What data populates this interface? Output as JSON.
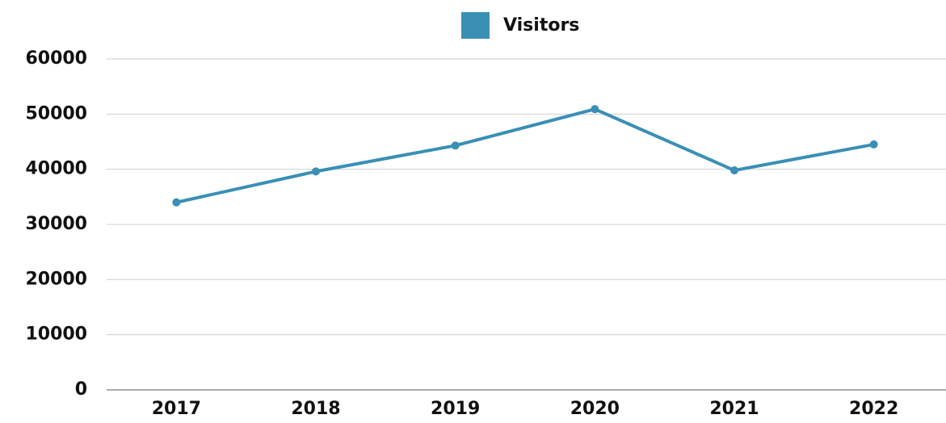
{
  "chart_data": {
    "type": "line",
    "categories": [
      "2017",
      "2018",
      "2019",
      "2020",
      "2021",
      "2022"
    ],
    "series": [
      {
        "name": "Visitors",
        "color": "#3a8fb5",
        "values": [
          34000,
          39600,
          44300,
          50900,
          39800,
          44500
        ]
      }
    ],
    "ylim": [
      0,
      60000
    ],
    "yticks": [
      0,
      10000,
      20000,
      30000,
      40000,
      50000,
      60000
    ],
    "grid": true,
    "legend": "top"
  }
}
